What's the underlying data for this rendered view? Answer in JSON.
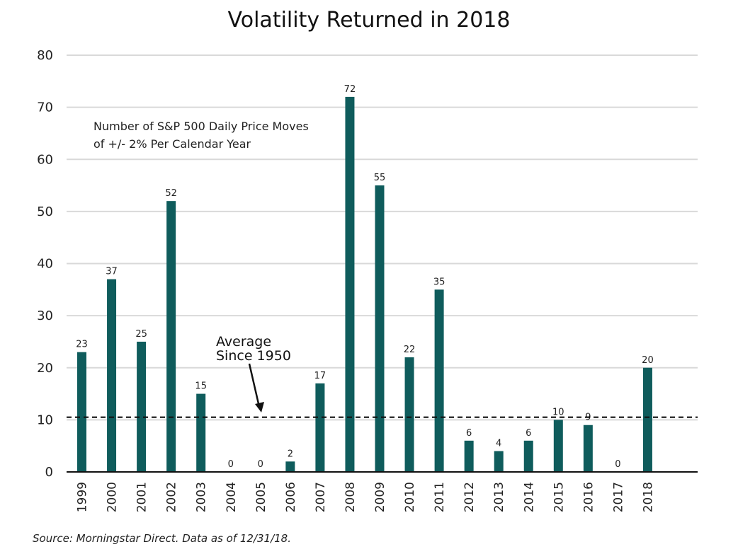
{
  "chart_data": {
    "type": "bar",
    "title": "Volatility Returned in 2018",
    "annotation_lines": [
      "Number of S&P 500 Daily Price Moves",
      "of +/- 2% Per Calendar Year"
    ],
    "categories": [
      "1999",
      "2000",
      "2001",
      "2002",
      "2003",
      "2004",
      "2005",
      "2006",
      "2007",
      "2008",
      "2009",
      "2010",
      "2011",
      "2012",
      "2013",
      "2014",
      "2015",
      "2016",
      "2017",
      "2018"
    ],
    "values": [
      23,
      37,
      25,
      52,
      15,
      0,
      0,
      2,
      17,
      72,
      55,
      22,
      35,
      6,
      4,
      6,
      10,
      9,
      0,
      20
    ],
    "ylim": [
      0,
      80
    ],
    "yticks": [
      0,
      10,
      20,
      30,
      40,
      50,
      60,
      70,
      80
    ],
    "average": {
      "value": 10.5,
      "label_lines": [
        "Average",
        "Since 1950"
      ]
    },
    "bar_color": "#0f5c5c",
    "grid": true
  },
  "source": "Source: Morningstar Direct. Data as of 12/31/18."
}
